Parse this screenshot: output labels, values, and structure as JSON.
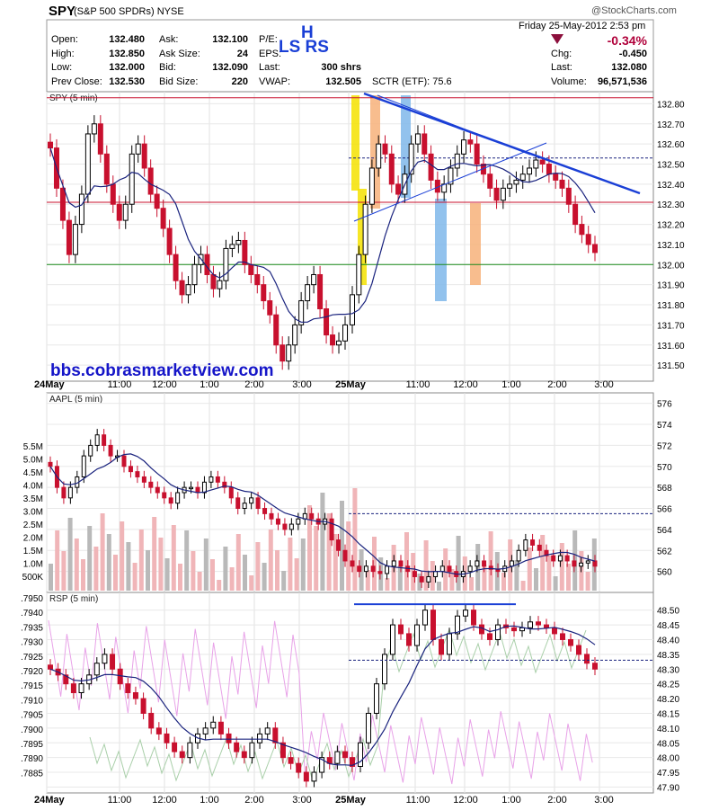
{
  "header": {
    "symbol": "SPY",
    "name": "(S&P 500 SPDRs)",
    "exchange": "NYSE",
    "logo_text": "@StockCharts.com",
    "datetime": "Friday  25-May-2012  2:53 pm",
    "change_pct": "-0.34%",
    "fields": [
      {
        "label": "Open:",
        "value": "132.480"
      },
      {
        "label": "High:",
        "value": "132.850"
      },
      {
        "label": "Low:",
        "value": "132.000"
      },
      {
        "label": "Prev Close:",
        "value": "132.530"
      }
    ],
    "fields2": [
      {
        "label": "Ask:",
        "value": "132.100"
      },
      {
        "label": "Ask Size:",
        "value": "24"
      },
      {
        "label": "Bid:",
        "value": "132.090"
      },
      {
        "label": "Bid Size:",
        "value": "220"
      }
    ],
    "fields3": [
      {
        "label": "P/E:",
        "value": ""
      },
      {
        "label": "EPS:",
        "value": ""
      },
      {
        "label": "Last:",
        "value": "300 shrs"
      },
      {
        "label": "VWAP:",
        "value": "132.505"
      }
    ],
    "sctr": "SCTR (ETF):  75.6",
    "fields4": [
      {
        "label": "Chg:",
        "value": "-0.450"
      },
      {
        "label": "Last:",
        "value": "132.080"
      },
      {
        "label": "Volume:",
        "value": "96,571,536"
      }
    ]
  },
  "annotations": {
    "h": "H",
    "ls_rs": "LS  RS",
    "site": "bbs.cobrasmarketview.com"
  },
  "colors": {
    "up": "#000000",
    "down": "#c8102e",
    "ma": "#1a237e",
    "trend": "#1a3fd6"
  },
  "chart_data": [
    {
      "type": "candlestick",
      "title": "SPY (5 min)",
      "y_ticks": [
        132.8,
        132.7,
        132.6,
        132.5,
        132.4,
        132.3,
        132.2,
        132.1,
        132.0,
        131.9,
        131.8,
        131.7,
        131.6,
        131.5
      ],
      "ylim": [
        131.42,
        132.86
      ],
      "x_labels": [
        "24May",
        "11:00",
        "12:00",
        "1:00",
        "2:00",
        "3:00",
        "25May",
        "11:00",
        "12:00",
        "1:00",
        "2:00",
        "3:00"
      ],
      "hlines": [
        132.83,
        132.31,
        132.0
      ],
      "dashed_line": 132.53,
      "series_close": [
        132.58,
        132.38,
        132.22,
        132.05,
        132.2,
        132.35,
        132.65,
        132.7,
        132.55,
        132.4,
        132.3,
        132.22,
        132.3,
        132.55,
        132.6,
        132.48,
        132.35,
        132.28,
        132.18,
        132.05,
        131.92,
        131.85,
        131.9,
        132.0,
        132.05,
        131.95,
        131.88,
        131.92,
        132.08,
        132.1,
        132.12,
        132.0,
        131.95,
        131.9,
        131.82,
        131.75,
        131.6,
        131.52,
        131.6,
        131.7,
        131.82,
        131.9,
        131.95,
        131.78,
        131.65,
        131.6,
        131.62,
        131.7,
        131.85,
        132.05,
        132.3,
        132.48,
        132.6,
        132.55,
        132.4,
        132.35,
        132.45,
        132.6,
        132.65,
        132.55,
        132.42,
        132.36,
        132.4,
        132.48,
        132.55,
        132.62,
        132.6,
        132.5,
        132.45,
        132.38,
        132.32,
        132.38,
        132.4,
        132.42,
        132.45,
        132.48,
        132.52,
        132.5,
        132.45,
        132.42,
        132.38,
        132.3,
        132.2,
        132.15,
        132.1,
        132.06
      ]
    },
    {
      "type": "candlestick-volume",
      "title": "AAPL (5 min)",
      "y_ticks_right": [
        576,
        574,
        572,
        570,
        568,
        566,
        564,
        562,
        560
      ],
      "ylim": [
        558,
        577
      ],
      "volume_ticks": [
        "5.5M",
        "5.0M",
        "4.5M",
        "4.0M",
        "3.5M",
        "3.0M",
        "2.5M",
        "2.0M",
        "1.5M",
        "1.0M",
        "500K"
      ],
      "dashed_line": 565.5,
      "series_close": [
        570,
        568,
        567,
        568,
        569,
        571,
        572,
        573,
        572,
        571,
        571,
        570,
        569.5,
        569,
        568.5,
        568,
        567.5,
        567,
        566.5,
        567.5,
        568,
        568,
        567.5,
        568.5,
        569,
        568.5,
        568,
        567,
        566,
        566.5,
        567,
        566,
        565.5,
        565,
        564.5,
        564,
        564.5,
        565,
        565.5,
        565,
        564.5,
        565,
        563,
        562,
        561,
        560.5,
        560,
        560.5,
        560,
        559.8,
        560.5,
        561,
        560.5,
        560,
        559.5,
        559,
        559.5,
        560,
        560.5,
        560,
        559.5,
        560,
        560.5,
        561,
        560.5,
        560.2,
        560,
        560.5,
        561,
        562,
        563,
        562.5,
        562,
        561.5,
        561,
        561.5,
        561,
        560.5,
        560.8,
        561,
        560.5
      ]
    },
    {
      "type": "candlestick-overlay",
      "title": "RSP (5 min)",
      "y_ticks_left": [
        0.795,
        0.794,
        0.7935,
        0.793,
        0.7925,
        0.792,
        0.7915,
        0.791,
        0.7905,
        0.79,
        0.7895,
        0.789,
        0.7885
      ],
      "y_ticks_left_labels": [
        ".7950",
        ".7940",
        ".7935",
        ".7930",
        ".7925",
        ".7920",
        ".7915",
        ".7910",
        ".7905",
        ".7900",
        ".7895",
        ".7890",
        ".7885"
      ],
      "y_ticks_right": [
        48.5,
        48.45,
        48.4,
        48.35,
        48.3,
        48.25,
        48.2,
        48.15,
        48.1,
        48.05,
        48.0,
        47.95,
        47.9
      ],
      "ylim": [
        47.88,
        48.56
      ],
      "dashed_line": 48.33,
      "top_line": 48.52,
      "series_close": [
        48.3,
        48.28,
        48.25,
        48.22,
        48.25,
        48.28,
        48.32,
        48.35,
        48.3,
        48.25,
        48.22,
        48.2,
        48.15,
        48.1,
        48.08,
        48.05,
        48.02,
        48.0,
        48.05,
        48.08,
        48.1,
        48.12,
        48.08,
        48.05,
        48.02,
        48.0,
        48.05,
        48.08,
        48.1,
        48.05,
        48.0,
        47.98,
        47.95,
        47.92,
        47.95,
        48.0,
        47.98,
        48.02,
        48.0,
        47.97,
        48.05,
        48.15,
        48.25,
        48.35,
        48.45,
        48.42,
        48.38,
        48.45,
        48.5,
        48.4,
        48.35,
        48.42,
        48.48,
        48.5,
        48.45,
        48.42,
        48.4,
        48.45,
        48.44,
        48.43,
        48.44,
        48.46,
        48.45,
        48.44,
        48.42,
        48.4,
        48.38,
        48.35,
        48.32,
        48.3
      ]
    }
  ]
}
